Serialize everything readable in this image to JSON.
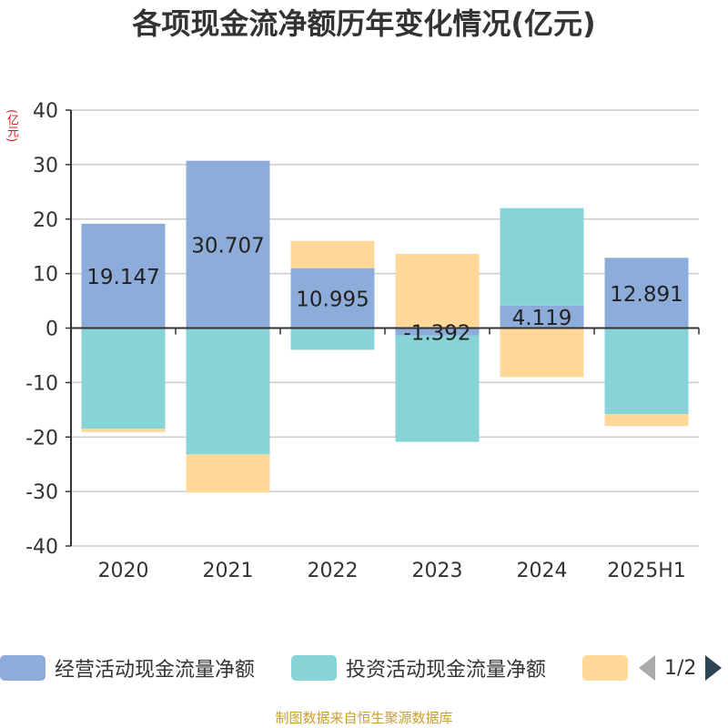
{
  "title": "各项现金流净额历年变化情况(亿元)",
  "unit": "(亿元)",
  "source": "制图数据来自恒生聚源数据库",
  "legend": {
    "items": [
      {
        "label": "经营活动现金流量净额",
        "color": "#8eacd9"
      },
      {
        "label": "投资活动现金流量净额",
        "color": "#86d4d8"
      },
      {
        "label": "",
        "color": "#ffd89a"
      }
    ],
    "page": "1/2"
  },
  "chart_data": {
    "type": "bar",
    "stacked": true,
    "title": "各项现金流净额历年变化情况(亿元)",
    "ylabel": "(亿元)",
    "categories": [
      "2020",
      "2021",
      "2022",
      "2023",
      "2024",
      "2025H1"
    ],
    "ylim": [
      -40,
      40
    ],
    "yticks": [
      40,
      30,
      20,
      10,
      0,
      -10,
      -20,
      -30,
      -40
    ],
    "grid": true,
    "series": [
      {
        "name": "经营活动现金流量净额",
        "color": "#8eacd9",
        "values": [
          19.147,
          30.707,
          10.995,
          -1.392,
          4.119,
          12.891
        ],
        "labels": [
          "19.147",
          "30.707",
          "10.995",
          "-1.392",
          "4.119",
          "12.891"
        ]
      },
      {
        "name": "投资活动现金流量净额",
        "color": "#86d4d8",
        "values": [
          -18.5,
          -23.2,
          -4.0,
          -19.5,
          17.9,
          -15.8
        ]
      },
      {
        "name": "",
        "color": "#ffd89a",
        "values": [
          -0.6,
          -7.0,
          5.0,
          13.6,
          -9.0,
          -2.2
        ]
      }
    ]
  }
}
